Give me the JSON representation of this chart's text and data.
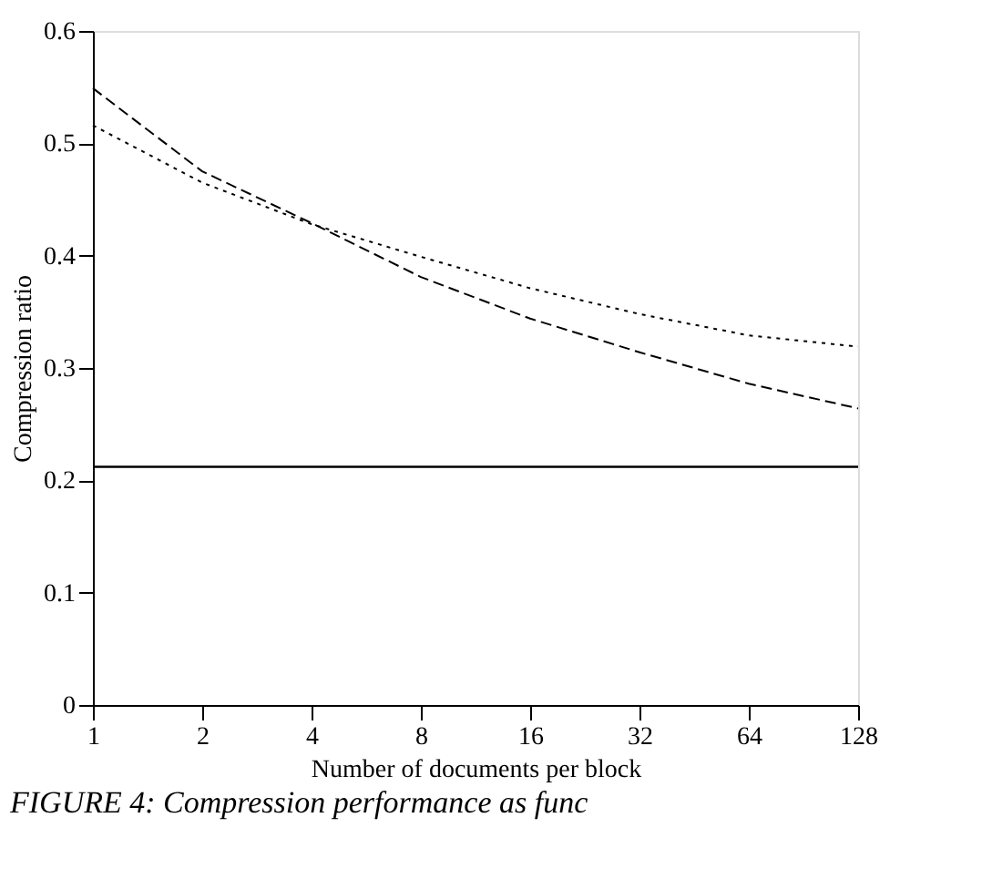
{
  "chart_data": {
    "type": "line",
    "xlabel": "Number of documents per block",
    "ylabel": "Compression ratio",
    "x": [
      1,
      2,
      4,
      8,
      16,
      32,
      64,
      128
    ],
    "series": [
      {
        "color": "#000000",
        "line_style": "dashed",
        "values": [
          0.549,
          0.475,
          0.429,
          0.381,
          0.344,
          0.314,
          0.286,
          0.264
        ]
      },
      {
        "color": "#000000",
        "line_style": "dotted",
        "values": [
          0.516,
          0.465,
          0.428,
          0.399,
          0.371,
          0.348,
          0.329,
          0.319
        ]
      }
    ],
    "ref_lines": [
      {
        "axis": "y",
        "value": 0.212,
        "color": "#000000",
        "line_style": "solid"
      }
    ],
    "log": "x",
    "xlim": [
      1,
      128
    ],
    "xticks": [
      1,
      2,
      4,
      8,
      16,
      32,
      64,
      128
    ],
    "ylim": [
      0,
      0.6
    ],
    "yticks": [
      0,
      0.1,
      0.2,
      0.3,
      0.4,
      0.5,
      0.6
    ],
    "grid": false,
    "marker": "none",
    "annotations": [
      "FIGURE 4: Compression performance as func"
    ]
  }
}
